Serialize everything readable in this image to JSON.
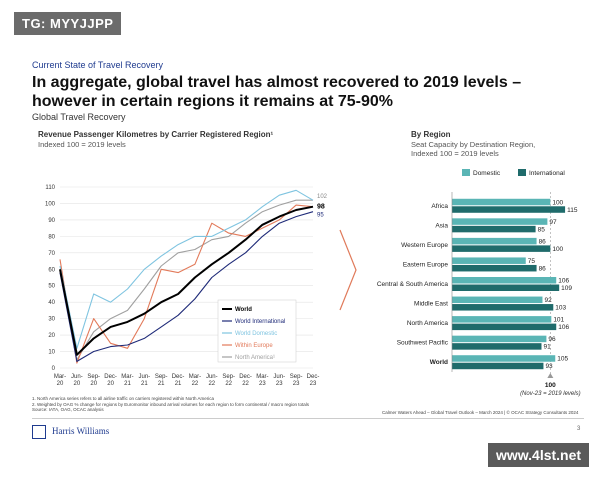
{
  "watermark_top": "TG: MYYJJPP",
  "watermark_bottom": "www.4lst.net",
  "kicker": "Current State of Travel Recovery",
  "headline": "In aggregate, global travel has almost recovered to 2019 levels – however in certain regions it remains at 75-90%",
  "subhead": "Global Travel Recovery",
  "footnotes": [
    "1. North America series refers to all airline traffic on carriers registered within North America",
    "2. Weighted by OAG % change for regions by Euromonitor inbound arrival volumes for each region to form continental / macro region totals",
    "Source: IATA, OAG, OCAC analysis"
  ],
  "source_right": "Calmer Waters Ahead – Global Travel Outlook – March 2024 | © OCAC Strategy Consultants 2024",
  "page_number": "3",
  "logo": "Harris Williams",
  "colors": {
    "world": "#000000",
    "world_international": "#1e2a78",
    "world_domestic": "#7fc4e0",
    "within_europe": "#e27a5a",
    "north_america": "#a0a0a0",
    "domestic_bar": "#5ab5b5",
    "international_bar": "#1f6b6b",
    "arrow": "#e07a5a"
  },
  "chart_data": [
    {
      "type": "line",
      "title": "Revenue Passenger Kilometres by Carrier Registered Region¹",
      "subtitle": "Indexed 100 = 2019 levels",
      "x": [
        "Mar-20",
        "Jun-20",
        "Sep-20",
        "Dec-20",
        "Mar-21",
        "Jun-21",
        "Sep-21",
        "Dec-21",
        "Mar-22",
        "Jun-22",
        "Sep-22",
        "Dec-22",
        "Mar-23",
        "Jun-23",
        "Sep-23",
        "Dec-23"
      ],
      "x_ticks": [
        [
          "Mar-",
          "20"
        ],
        [
          "Jun-",
          "20"
        ],
        [
          "Sep-",
          "20"
        ],
        [
          "Dec-",
          "20"
        ],
        [
          "Mar-",
          "21"
        ],
        [
          "Jun-",
          "21"
        ],
        [
          "Sep-",
          "21"
        ],
        [
          "Dec-",
          "21"
        ],
        [
          "Mar-",
          "22"
        ],
        [
          "Jun-",
          "22"
        ],
        [
          "Sep-",
          "22"
        ],
        [
          "Dec-",
          "22"
        ],
        [
          "Mar-",
          "23"
        ],
        [
          "Jun-",
          "23"
        ],
        [
          "Sep-",
          "23"
        ],
        [
          "Dec-",
          "23"
        ]
      ],
      "y_ticks": [
        "0",
        "10",
        "20",
        "30",
        "40",
        "50",
        "60",
        "70",
        "80",
        "90",
        "100",
        "110"
      ],
      "ylim": [
        0,
        110
      ],
      "grid": true,
      "legend_position": "bottom-right",
      "end_labels": [
        "102",
        "98",
        "95"
      ],
      "series": [
        {
          "name": "World",
          "key": "world",
          "values": [
            60,
            8,
            18,
            25,
            28,
            33,
            40,
            45,
            55,
            63,
            70,
            78,
            87,
            92,
            96,
            98
          ]
        },
        {
          "name": "World International",
          "key": "world_international",
          "values": [
            58,
            4,
            10,
            13,
            14,
            18,
            25,
            32,
            42,
            55,
            63,
            70,
            80,
            88,
            92,
            95
          ]
        },
        {
          "name": "World Domestic",
          "key": "world_domestic",
          "values": [
            62,
            12,
            45,
            40,
            48,
            60,
            68,
            75,
            80,
            80,
            85,
            90,
            98,
            105,
            108,
            102
          ]
        },
        {
          "name": "Within Europe",
          "key": "within_europe",
          "values": [
            66,
            3,
            30,
            15,
            12,
            30,
            60,
            58,
            63,
            88,
            82,
            80,
            85,
            90,
            99,
            98
          ]
        },
        {
          "name": "North America¹",
          "key": "north_america",
          "values": [
            60,
            5,
            22,
            30,
            35,
            48,
            62,
            70,
            72,
            78,
            80,
            88,
            95,
            99,
            102,
            102
          ]
        }
      ]
    },
    {
      "type": "bar",
      "title": "By Region",
      "subtitle": "Seat Capacity by Destination Region, Indexed 100 = 2019 levels",
      "categories": [
        "Africa",
        "Asia",
        "Western Europe",
        "Eastern Europe",
        "Central & South America",
        "Middle East",
        "North America",
        "Southwest Pacific",
        "World"
      ],
      "series": [
        {
          "name": "Domestic",
          "key": "domestic_bar",
          "values": [
            100,
            97,
            86,
            75,
            106,
            92,
            101,
            96,
            105
          ]
        },
        {
          "name": "International",
          "key": "international_bar",
          "values": [
            115,
            85,
            100,
            86,
            109,
            103,
            106,
            91,
            93
          ]
        }
      ],
      "xlim": [
        0,
        120
      ],
      "reference": {
        "value": "100",
        "label": "(Nov-23 = 2019 levels)"
      }
    }
  ]
}
